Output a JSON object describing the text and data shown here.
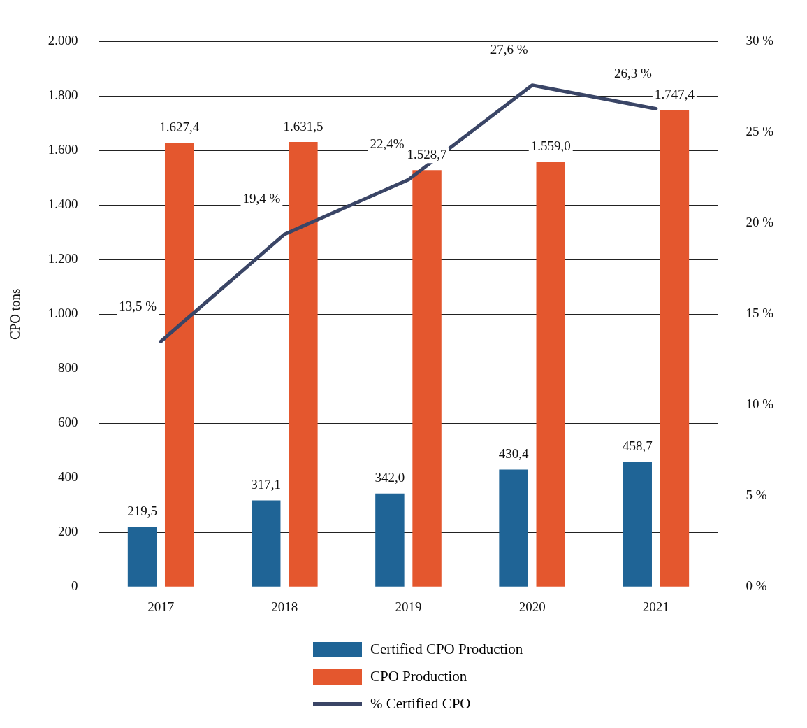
{
  "chart_data": {
    "type": "bar",
    "ylabel": "CPO tons",
    "categories": [
      "2017",
      "2018",
      "2019",
      "2020",
      "2021"
    ],
    "series": [
      {
        "name": "Certified CPO Production",
        "color": "#1f6496",
        "values": [
          219.5,
          317.1,
          342.0,
          430.4,
          458.7
        ],
        "value_labels": [
          "219,5",
          "317,1",
          "342,0",
          "430,4",
          "458,7"
        ]
      },
      {
        "name": "CPO Production",
        "color": "#e4572e",
        "values": [
          1627.4,
          1631.5,
          1528.7,
          1559.0,
          1747.4
        ],
        "value_labels": [
          "1.627,4",
          "1.631,5",
          "1.528,7",
          "1.559,0",
          "1.747,4"
        ]
      },
      {
        "name": "% Certified CPO",
        "type": "line",
        "axis": "y2",
        "color": "#3a4566",
        "values": [
          13.5,
          19.4,
          22.4,
          27.6,
          26.3
        ],
        "value_labels": [
          "13,5 %",
          "19,4 %",
          "22,4%",
          "27,6 %",
          "26,3 %"
        ]
      }
    ],
    "ylim": [
      0,
      2000
    ],
    "yticks": [
      0,
      200,
      400,
      600,
      800,
      {
        "value": 1000,
        "label": "1.000"
      },
      {
        "value": 1200,
        "label": "1.200"
      },
      {
        "value": 1400,
        "label": "1.400"
      },
      {
        "value": 1600,
        "label": "1.600"
      },
      {
        "value": 1800,
        "label": "1.800"
      },
      {
        "value": 2000,
        "label": "2.000"
      }
    ],
    "y2lim": [
      0,
      30
    ],
    "y2ticks": [
      {
        "value": 0,
        "label": "0 %"
      },
      {
        "value": 5,
        "label": "5 %"
      },
      {
        "value": 10,
        "label": "10 %"
      },
      {
        "value": 15,
        "label": "15 %"
      },
      {
        "value": 20,
        "label": "20 %"
      },
      {
        "value": 25,
        "label": "25 %"
      },
      {
        "value": 30,
        "label": "30 %"
      }
    ],
    "grid": "y",
    "legend": "bottom",
    "marker": "none",
    "line_style": "solid"
  }
}
